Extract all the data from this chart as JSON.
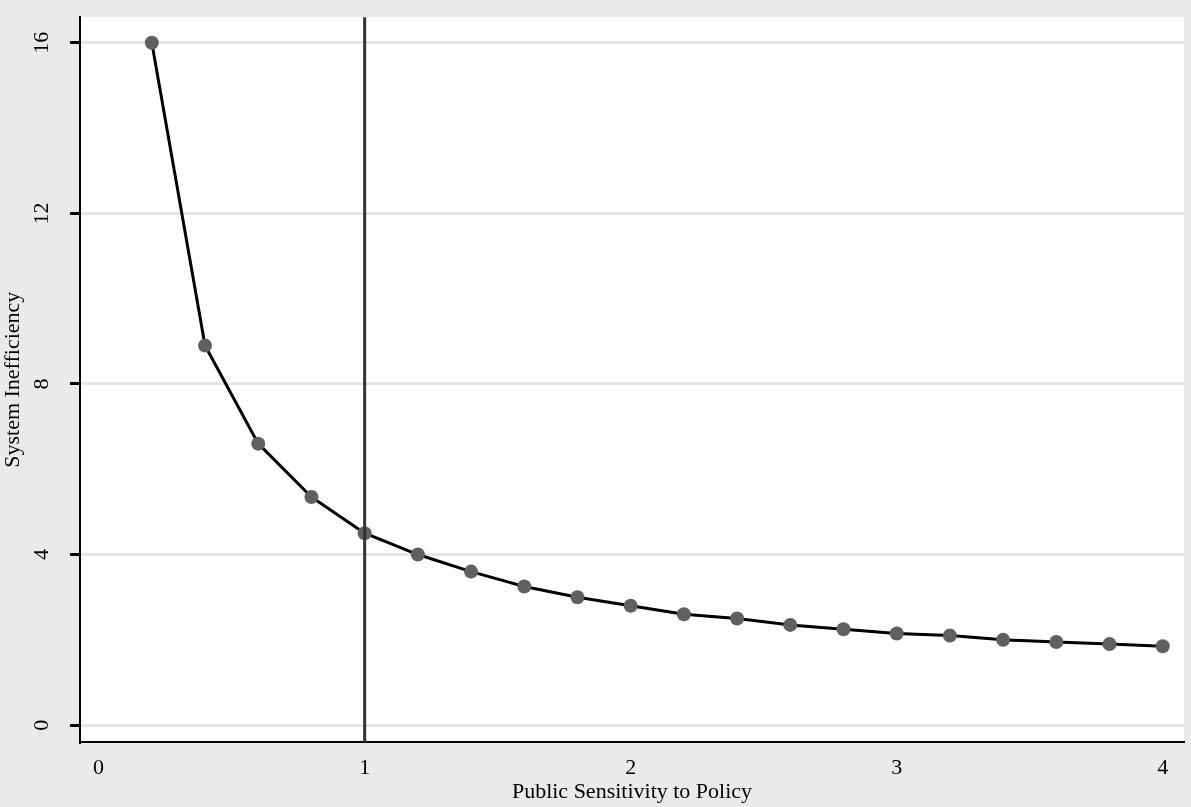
{
  "chart_data": {
    "type": "line",
    "xlabel": "Public Sensitivity to Policy",
    "ylabel": "System Inefficiency",
    "x": [
      0.2,
      0.4,
      0.6,
      0.8,
      1.0,
      1.2,
      1.4,
      1.6,
      1.8,
      2.0,
      2.2,
      2.4,
      2.6,
      2.8,
      3.0,
      3.2,
      3.4,
      3.6,
      3.8,
      4.0
    ],
    "series": [
      {
        "color": "#000000",
        "values": [
          16.0,
          8.9,
          6.6,
          5.35,
          4.5,
          4.0,
          3.6,
          3.25,
          3.0,
          2.8,
          2.6,
          2.5,
          2.35,
          2.25,
          2.15,
          2.1,
          2.0,
          1.95,
          1.9,
          1.85
        ]
      }
    ],
    "marker": "circle",
    "line_style": "solid",
    "grid": "y",
    "legend": false,
    "xlim": [
      -0.07,
      4.08
    ],
    "ylim": [
      -0.4,
      16.6
    ],
    "xticks": [
      0,
      1,
      2,
      3,
      4
    ],
    "yticks": [
      0,
      4,
      8,
      12,
      16
    ],
    "ref_lines": [
      {
        "axis": "x",
        "value": 1,
        "color": "#333333"
      }
    ]
  }
}
